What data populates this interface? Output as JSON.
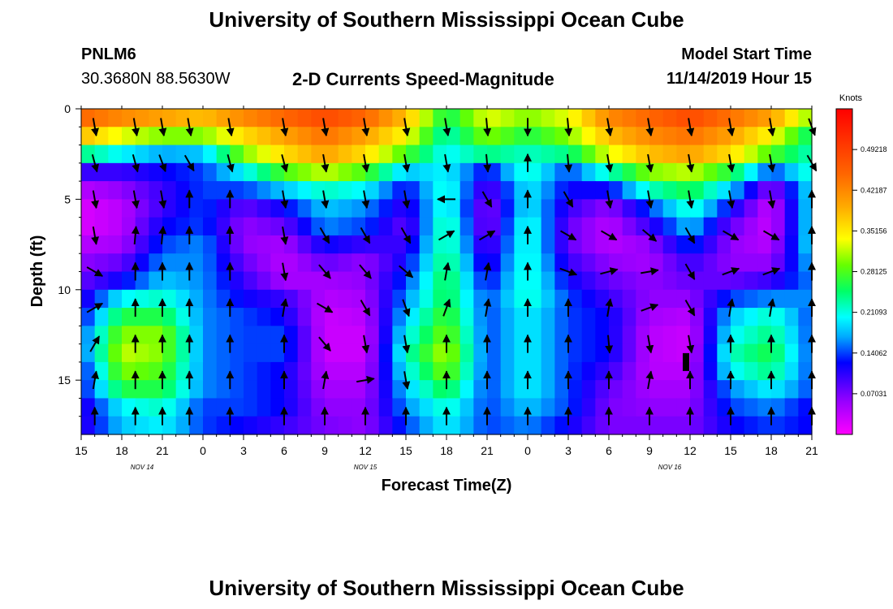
{
  "header": {
    "title": "University of Southern Mississippi Ocean Cube",
    "station": "PNLM6",
    "coords": "30.3680N 88.5630W",
    "subtitle": "2-D Currents Speed-Magnitude",
    "start_label": "Model Start Time",
    "start_value": "11/14/2019 Hour 15"
  },
  "footer": {
    "title": "University of Southern Mississippi Ocean Cube"
  },
  "chart_data": {
    "type": "heatmap",
    "title": "2-D Currents Speed-Magnitude",
    "xlabel": "Forecast Time(Z)",
    "ylabel": "Depth (ft)",
    "xlim": [
      0,
      54
    ],
    "ylim": [
      18,
      0
    ],
    "x_ticks": [
      {
        "v": 0,
        "label": "15"
      },
      {
        "v": 3,
        "label": "18"
      },
      {
        "v": 6,
        "label": "21"
      },
      {
        "v": 9,
        "label": "0"
      },
      {
        "v": 12,
        "label": "3"
      },
      {
        "v": 15,
        "label": "6"
      },
      {
        "v": 18,
        "label": "9"
      },
      {
        "v": 21,
        "label": "12"
      },
      {
        "v": 24,
        "label": "15"
      },
      {
        "v": 27,
        "label": "18"
      },
      {
        "v": 30,
        "label": "21"
      },
      {
        "v": 33,
        "label": "0"
      },
      {
        "v": 36,
        "label": "3"
      },
      {
        "v": 39,
        "label": "6"
      },
      {
        "v": 42,
        "label": "9"
      },
      {
        "v": 45,
        "label": "12"
      },
      {
        "v": 48,
        "label": "15"
      },
      {
        "v": 51,
        "label": "18"
      },
      {
        "v": 54,
        "label": "21"
      }
    ],
    "day_labels": [
      {
        "v": 4.5,
        "label": "NOV 14"
      },
      {
        "v": 21,
        "label": "NOV 15"
      },
      {
        "v": 43.5,
        "label": "NOV 16"
      }
    ],
    "y_ticks": [
      {
        "v": 0,
        "label": "0"
      },
      {
        "v": 5,
        "label": "5"
      },
      {
        "v": 10,
        "label": "10"
      },
      {
        "v": 15,
        "label": "15"
      }
    ],
    "colorbar": {
      "title": "Knots",
      "min": 0,
      "max": 0.5625,
      "ticks": [
        "0.07031",
        "0.14062",
        "0.21093",
        "0.28125",
        "0.35156",
        "0.42187",
        "0.49218"
      ],
      "tick_values": [
        0.07031,
        0.14062,
        0.21093,
        0.28125,
        0.35156,
        0.42187,
        0.49218
      ]
    },
    "depths": [
      0.5,
      1.5,
      2.5,
      3.5,
      4.5,
      5.5,
      6.5,
      7.5,
      8.5,
      9.5,
      10.5,
      11.5,
      12.5,
      13.5,
      14.5,
      15.5,
      16.5,
      17.5
    ],
    "times": [
      0,
      3,
      6,
      9,
      12,
      15,
      18,
      21,
      24,
      27,
      30,
      33,
      36,
      39,
      42,
      45,
      48,
      51,
      54
    ],
    "speed": [
      [
        0.45,
        0.42,
        0.4,
        0.38,
        0.42,
        0.45,
        0.48,
        0.45,
        0.38,
        0.25,
        0.33,
        0.3,
        0.33,
        0.42,
        0.45,
        0.48,
        0.44,
        0.4,
        0.3
      ],
      [
        0.38,
        0.33,
        0.3,
        0.3,
        0.36,
        0.4,
        0.44,
        0.4,
        0.34,
        0.22,
        0.3,
        0.26,
        0.3,
        0.38,
        0.42,
        0.44,
        0.4,
        0.34,
        0.24
      ],
      [
        0.24,
        0.2,
        0.17,
        0.18,
        0.3,
        0.36,
        0.4,
        0.36,
        0.28,
        0.2,
        0.24,
        0.22,
        0.24,
        0.33,
        0.38,
        0.4,
        0.36,
        0.28,
        0.22
      ],
      [
        0.1,
        0.1,
        0.12,
        0.14,
        0.2,
        0.28,
        0.32,
        0.28,
        0.18,
        0.2,
        0.12,
        0.22,
        0.14,
        0.22,
        0.3,
        0.32,
        0.26,
        0.14,
        0.22
      ],
      [
        0.04,
        0.06,
        0.1,
        0.14,
        0.14,
        0.18,
        0.22,
        0.2,
        0.12,
        0.22,
        0.08,
        0.2,
        0.12,
        0.12,
        0.22,
        0.26,
        0.18,
        0.06,
        0.2
      ],
      [
        0.02,
        0.04,
        0.1,
        0.14,
        0.08,
        0.12,
        0.18,
        0.16,
        0.1,
        0.22,
        0.06,
        0.2,
        0.1,
        0.06,
        0.14,
        0.22,
        0.12,
        0.03,
        0.2
      ],
      [
        0.02,
        0.04,
        0.12,
        0.14,
        0.06,
        0.08,
        0.16,
        0.14,
        0.08,
        0.24,
        0.06,
        0.22,
        0.08,
        0.04,
        0.1,
        0.18,
        0.08,
        0.03,
        0.2
      ],
      [
        0.04,
        0.05,
        0.14,
        0.16,
        0.06,
        0.05,
        0.12,
        0.1,
        0.1,
        0.24,
        0.08,
        0.22,
        0.08,
        0.04,
        0.06,
        0.14,
        0.06,
        0.04,
        0.2
      ],
      [
        0.06,
        0.08,
        0.16,
        0.16,
        0.08,
        0.04,
        0.08,
        0.06,
        0.12,
        0.25,
        0.1,
        0.22,
        0.1,
        0.06,
        0.05,
        0.1,
        0.06,
        0.06,
        0.18
      ],
      [
        0.08,
        0.12,
        0.18,
        0.16,
        0.1,
        0.05,
        0.05,
        0.06,
        0.14,
        0.26,
        0.12,
        0.22,
        0.12,
        0.08,
        0.06,
        0.08,
        0.08,
        0.1,
        0.16
      ],
      [
        0.1,
        0.2,
        0.22,
        0.16,
        0.12,
        0.1,
        0.04,
        0.05,
        0.16,
        0.26,
        0.14,
        0.22,
        0.14,
        0.1,
        0.06,
        0.06,
        0.14,
        0.16,
        0.16
      ],
      [
        0.12,
        0.26,
        0.26,
        0.16,
        0.14,
        0.12,
        0.03,
        0.04,
        0.18,
        0.28,
        0.14,
        0.2,
        0.14,
        0.12,
        0.05,
        0.04,
        0.18,
        0.22,
        0.14
      ],
      [
        0.14,
        0.3,
        0.3,
        0.16,
        0.14,
        0.14,
        0.03,
        0.03,
        0.2,
        0.3,
        0.14,
        0.2,
        0.14,
        0.12,
        0.04,
        0.03,
        0.2,
        0.24,
        0.14
      ],
      [
        0.14,
        0.32,
        0.3,
        0.16,
        0.14,
        0.14,
        0.03,
        0.03,
        0.22,
        0.32,
        0.14,
        0.2,
        0.14,
        0.12,
        0.04,
        0.03,
        0.22,
        0.26,
        0.14
      ],
      [
        0.12,
        0.3,
        0.28,
        0.16,
        0.14,
        0.12,
        0.04,
        0.04,
        0.2,
        0.3,
        0.14,
        0.2,
        0.14,
        0.1,
        0.04,
        0.04,
        0.2,
        0.24,
        0.14
      ],
      [
        0.12,
        0.26,
        0.26,
        0.16,
        0.14,
        0.12,
        0.05,
        0.05,
        0.18,
        0.26,
        0.14,
        0.2,
        0.14,
        0.08,
        0.05,
        0.05,
        0.16,
        0.2,
        0.14
      ],
      [
        0.1,
        0.2,
        0.22,
        0.14,
        0.14,
        0.12,
        0.06,
        0.06,
        0.16,
        0.22,
        0.14,
        0.18,
        0.14,
        0.07,
        0.06,
        0.06,
        0.14,
        0.16,
        0.12
      ],
      [
        0.1,
        0.18,
        0.2,
        0.14,
        0.12,
        0.1,
        0.07,
        0.06,
        0.14,
        0.2,
        0.14,
        0.16,
        0.12,
        0.07,
        0.07,
        0.07,
        0.12,
        0.14,
        0.12
      ]
    ],
    "vector_times": [
      1,
      4,
      6,
      8,
      11,
      15,
      18,
      21,
      24,
      27,
      30,
      33,
      36,
      39,
      42,
      45,
      48,
      51,
      54
    ],
    "vector_depths": [
      1,
      3,
      5,
      7,
      9,
      11,
      13,
      15,
      17
    ],
    "vectors": {
      "angle_deg": [
        [
          -80,
          -80,
          -80,
          -80,
          -80,
          -80,
          -80,
          -80,
          -80,
          -80,
          -85,
          -90,
          -85,
          -80,
          -80,
          -80,
          -80,
          -80,
          -70
        ],
        [
          -75,
          -75,
          -70,
          -60,
          -75,
          -75,
          -80,
          -80,
          -80,
          -80,
          -85,
          90,
          -85,
          -80,
          -80,
          -80,
          -80,
          -80,
          -60
        ],
        [
          -80,
          -80,
          -80,
          90,
          90,
          -80,
          -80,
          -80,
          -80,
          180,
          -60,
          90,
          -60,
          -80,
          -80,
          -80,
          -80,
          -80,
          90
        ],
        [
          -80,
          85,
          85,
          90,
          90,
          -80,
          -60,
          -60,
          -60,
          30,
          30,
          90,
          -30,
          -30,
          -40,
          -60,
          -30,
          -30,
          90
        ],
        [
          -30,
          90,
          90,
          90,
          90,
          -80,
          -50,
          -50,
          -40,
          80,
          80,
          90,
          -20,
          15,
          10,
          -60,
          20,
          20,
          90
        ],
        [
          30,
          90,
          90,
          90,
          90,
          80,
          -30,
          -60,
          -70,
          70,
          80,
          90,
          90,
          80,
          20,
          -60,
          80,
          80,
          90
        ],
        [
          60,
          90,
          90,
          90,
          90,
          90,
          -50,
          -80,
          -80,
          90,
          90,
          90,
          90,
          -85,
          -80,
          -80,
          90,
          90,
          90
        ],
        [
          80,
          90,
          90,
          90,
          90,
          90,
          80,
          10,
          -80,
          90,
          90,
          90,
          90,
          90,
          80,
          90,
          90,
          90,
          90
        ],
        [
          90,
          90,
          90,
          90,
          90,
          90,
          90,
          90,
          90,
          90,
          90,
          90,
          90,
          90,
          90,
          90,
          90,
          90,
          90
        ]
      ]
    },
    "markers": [
      {
        "t": 44.7,
        "depth": 14.0,
        "label": ""
      }
    ]
  }
}
